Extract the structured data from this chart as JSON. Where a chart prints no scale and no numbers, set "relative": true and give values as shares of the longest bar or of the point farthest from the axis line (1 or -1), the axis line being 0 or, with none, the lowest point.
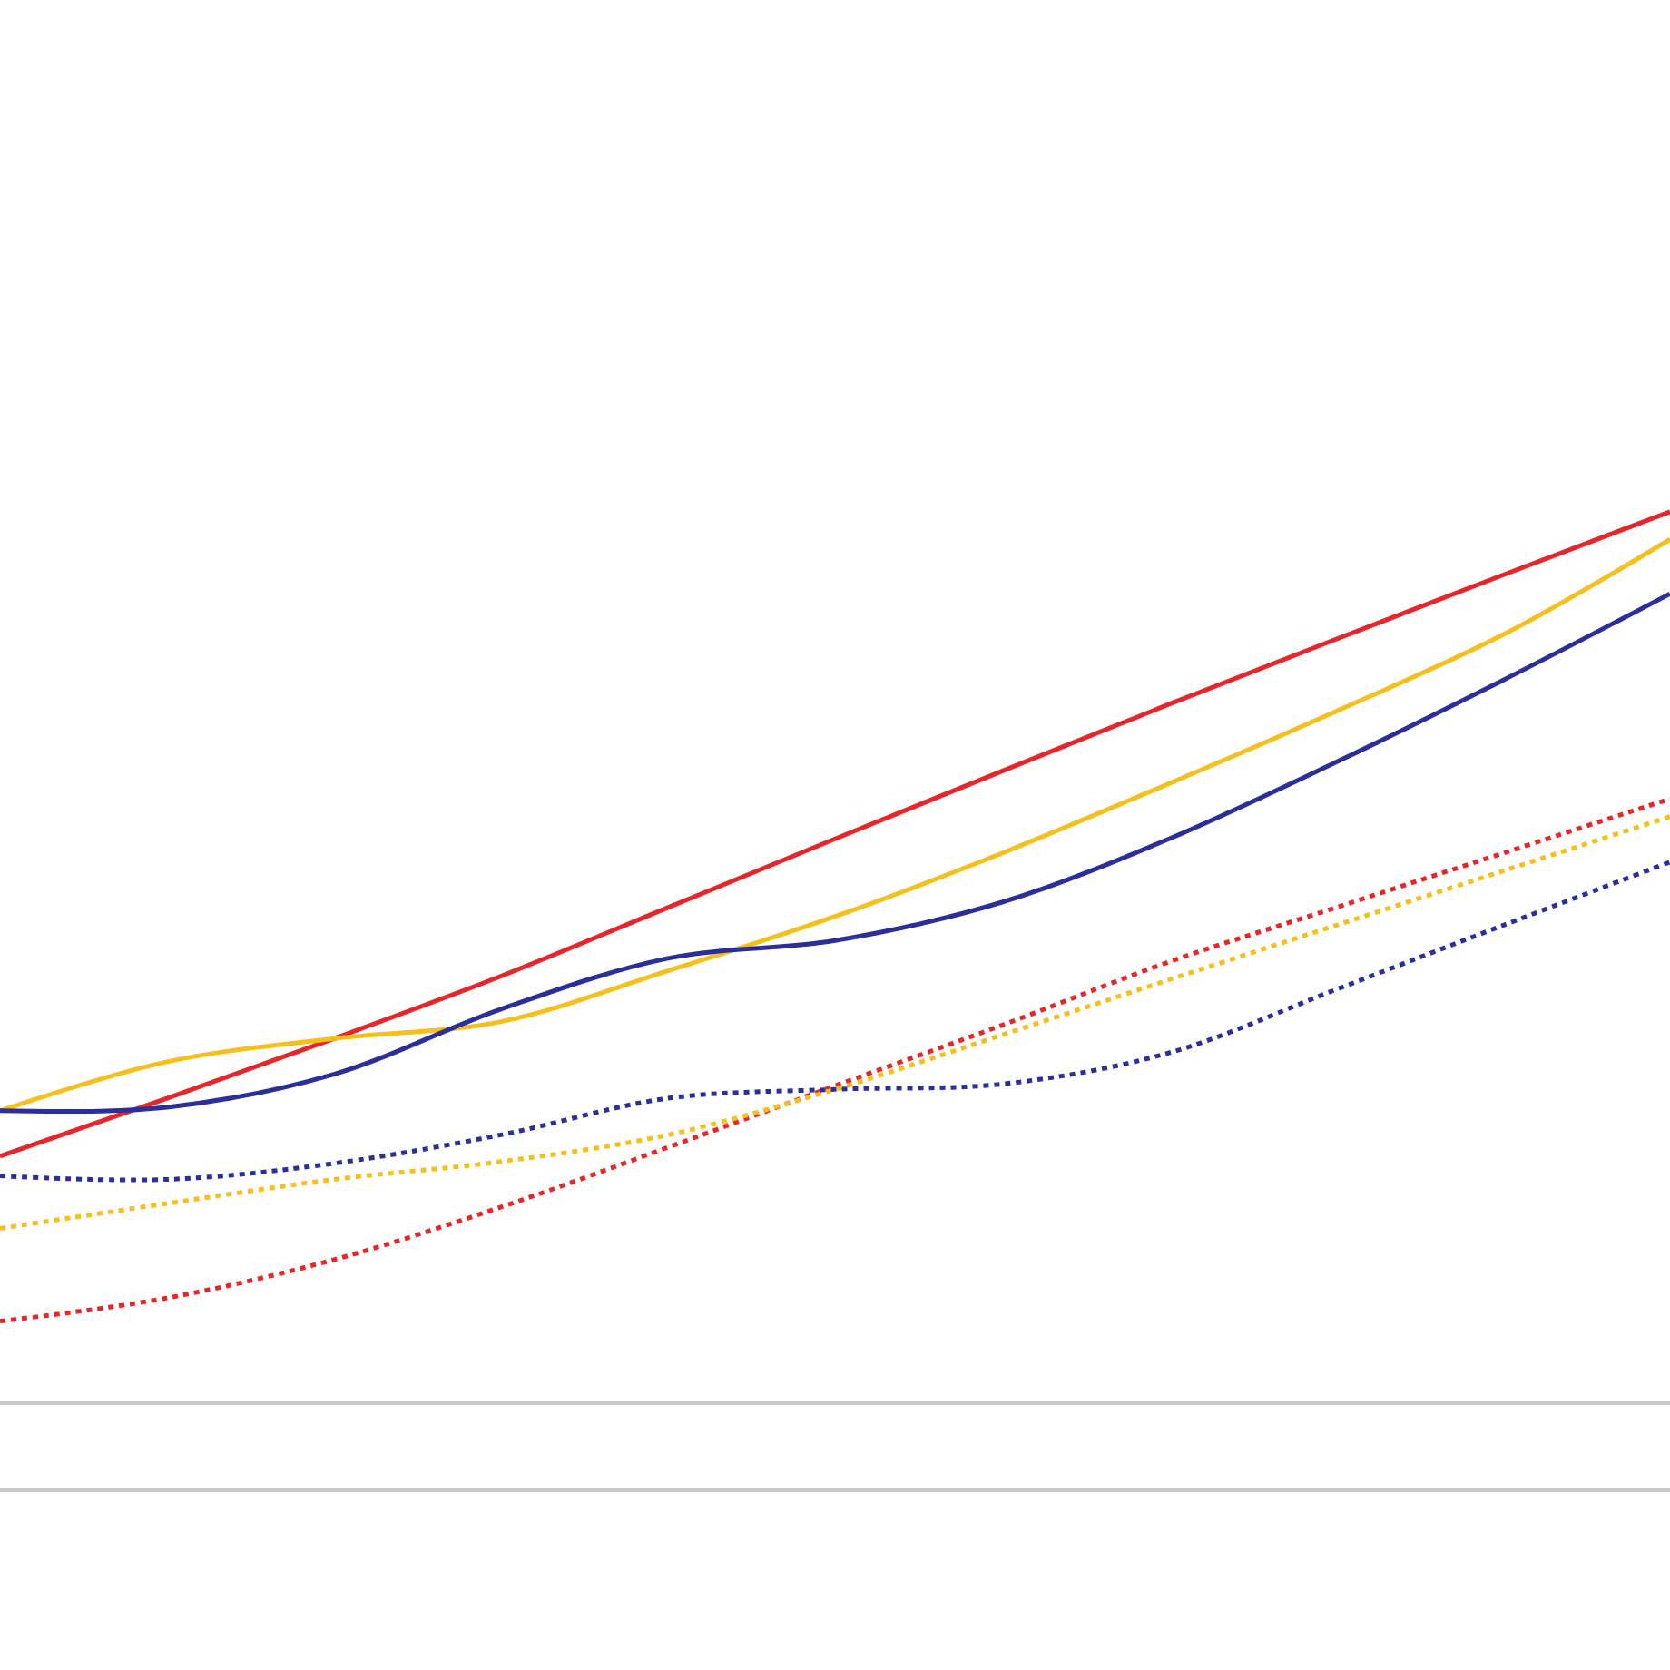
{
  "chart_data": {
    "type": "line",
    "relative": true,
    "categories": [
      null,
      null,
      null,
      null,
      null,
      null,
      null,
      null,
      null,
      null,
      null
    ],
    "tick_labels": false,
    "grid": false,
    "marker": "none",
    "series": [
      {
        "color": "#e8262a",
        "line_style": "solid",
        "values": [
          0.277,
          0.342,
          0.409,
          0.479,
          0.556,
          0.633,
          0.709,
          0.784,
          0.857,
          0.929,
          1
        ]
      },
      {
        "color": "#f5c01c",
        "line_style": "solid",
        "values": [
          0.328,
          0.383,
          0.409,
          0.428,
          0.485,
          0.546,
          0.617,
          0.695,
          0.776,
          0.862,
          0.969
        ]
      },
      {
        "color": "#2b2f9a",
        "line_style": "solid",
        "values": [
          0.328,
          0.332,
          0.369,
          0.442,
          0.499,
          0.519,
          0.562,
          0.633,
          0.719,
          0.811,
          0.908
        ]
      },
      {
        "color": "#e8262a",
        "line_style": "dotted",
        "values": [
          0.092,
          0.118,
          0.161,
          0.22,
          0.287,
          0.356,
          0.424,
          0.495,
          0.556,
          0.617,
          0.678
        ]
      },
      {
        "color": "#f5c01c",
        "line_style": "dotted",
        "values": [
          0.196,
          0.224,
          0.251,
          0.271,
          0.301,
          0.352,
          0.413,
          0.475,
          0.536,
          0.597,
          0.658
        ]
      },
      {
        "color": "#2b2f9a",
        "line_style": "dotted",
        "values": [
          0.255,
          0.251,
          0.269,
          0.301,
          0.342,
          0.352,
          0.358,
          0.393,
          0.464,
          0.536,
          0.607
        ]
      }
    ]
  }
}
